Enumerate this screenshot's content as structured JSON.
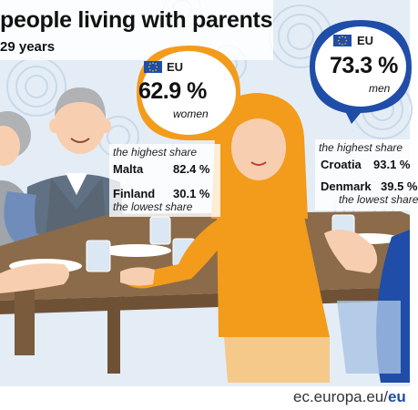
{
  "header": {
    "title": "people living with parents",
    "subtitle": "29 years"
  },
  "eu_women": {
    "region": "EU",
    "percent": "62.9 %",
    "group": "women"
  },
  "eu_men": {
    "region": "EU",
    "percent": "73.3 %",
    "group": "men"
  },
  "women_stats": {
    "highest_note": "the highest share",
    "highest_country": "Malta",
    "highest_value": "82.4 %",
    "lowest_country": "Finland",
    "lowest_value": "30.1 %",
    "lowest_note": "the lowest share"
  },
  "men_stats": {
    "highest_note": "the highest share",
    "highest_country": "Croatia",
    "highest_value": "93.1 %",
    "lowest_country": "Denmark",
    "lowest_value": "39.5 %",
    "lowest_note": "the lowest share"
  },
  "footer": {
    "site": "ec.europa.eu/",
    "brand": "eu"
  },
  "colors": {
    "orange": "#f39b1b",
    "blue": "#1f4da8",
    "table": "#8a6a4a",
    "background": "#dbe7f3"
  },
  "icons": [
    "eu-flag-icon"
  ]
}
